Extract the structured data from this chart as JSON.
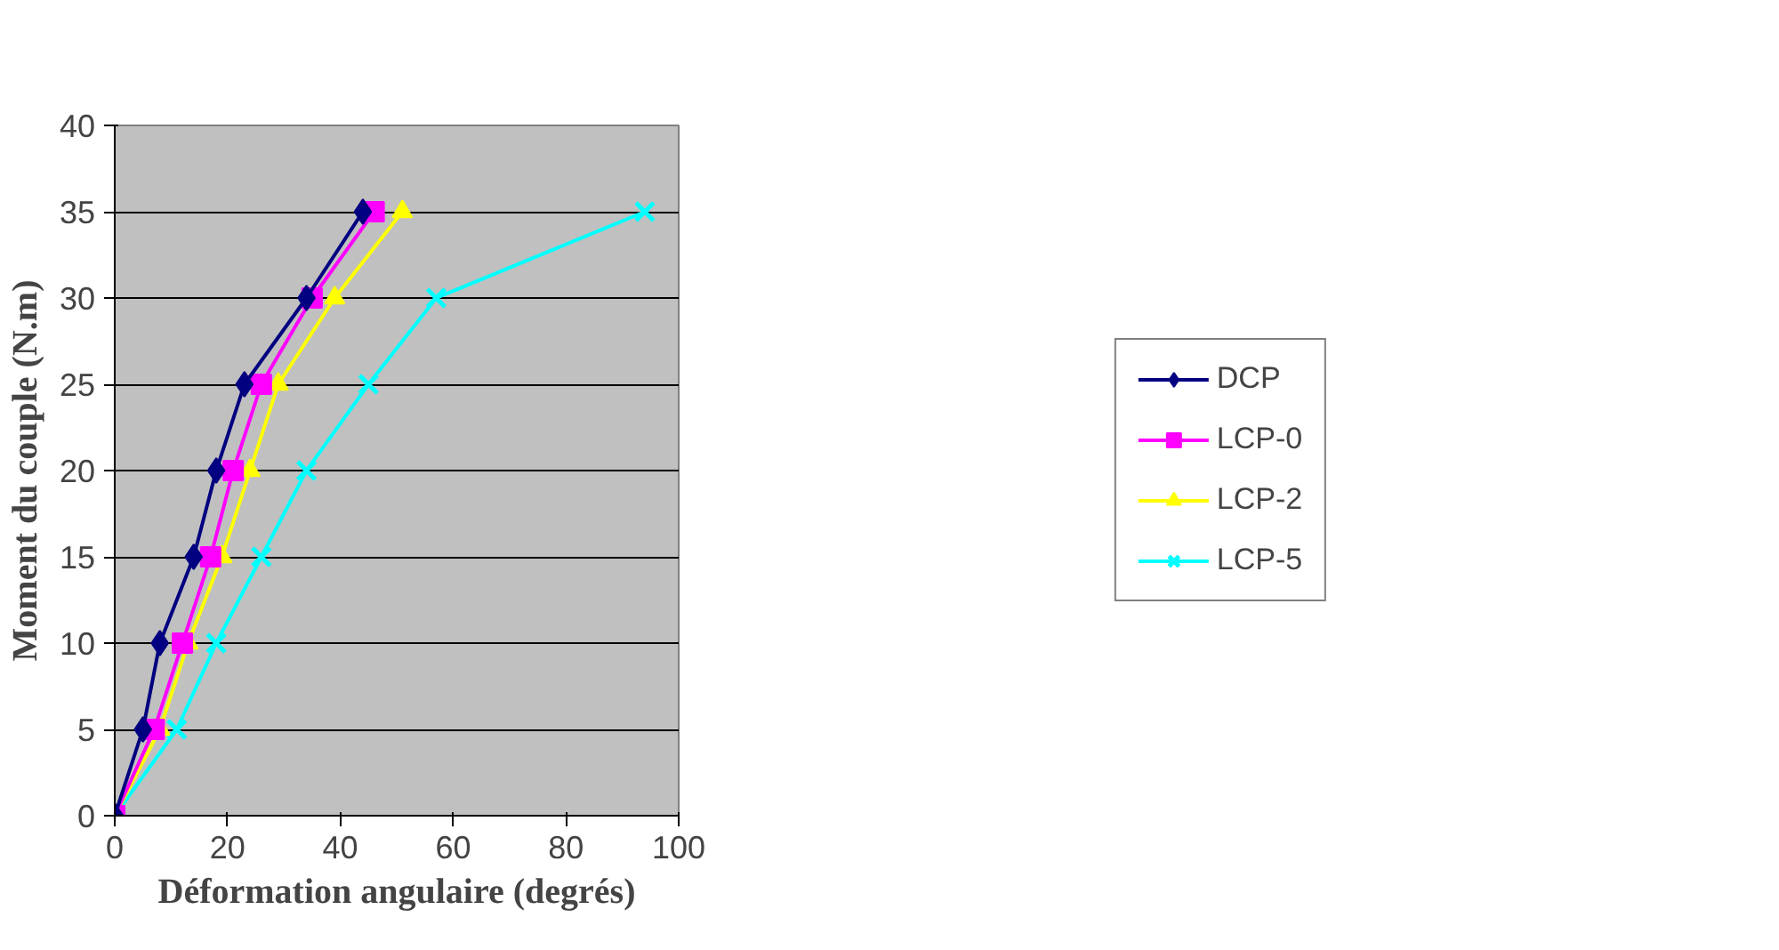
{
  "chart_data": {
    "type": "line",
    "xlabel": "Déformation angulaire (degrés)",
    "ylabel": "Moment du couple (N.m)",
    "xlim": [
      0,
      100
    ],
    "xticks": [
      0,
      20,
      40,
      60,
      80,
      100
    ],
    "ylim": [
      0,
      40
    ],
    "yticks": [
      0,
      5,
      10,
      15,
      20,
      25,
      30,
      35,
      40
    ],
    "grid": "y",
    "legend": "right",
    "line_style": "solid",
    "series": [
      {
        "name": "DCP",
        "color": "#000080",
        "marker": "diamond",
        "x": [
          0,
          5,
          8,
          14,
          18,
          23,
          34,
          44
        ],
        "values": [
          0,
          5,
          10,
          15,
          20,
          25,
          30,
          35
        ]
      },
      {
        "name": "LCP-0",
        "color": "#ff00ff",
        "marker": "square",
        "x": [
          0,
          7,
          12,
          17,
          21,
          26,
          35,
          46
        ],
        "values": [
          0,
          5,
          10,
          15,
          20,
          25,
          30,
          35
        ]
      },
      {
        "name": "LCP-2",
        "color": "#ffff00",
        "marker": "triangle",
        "x": [
          0,
          8,
          13,
          19,
          24,
          29,
          39,
          51
        ],
        "values": [
          0,
          5,
          10,
          15,
          20,
          25,
          30,
          35
        ]
      },
      {
        "name": "LCP-5",
        "color": "#00ffff",
        "marker": "cross",
        "x": [
          0,
          11,
          18,
          26,
          34,
          45,
          57,
          94
        ],
        "values": [
          0,
          5,
          10,
          15,
          20,
          25,
          30,
          35
        ]
      }
    ]
  }
}
